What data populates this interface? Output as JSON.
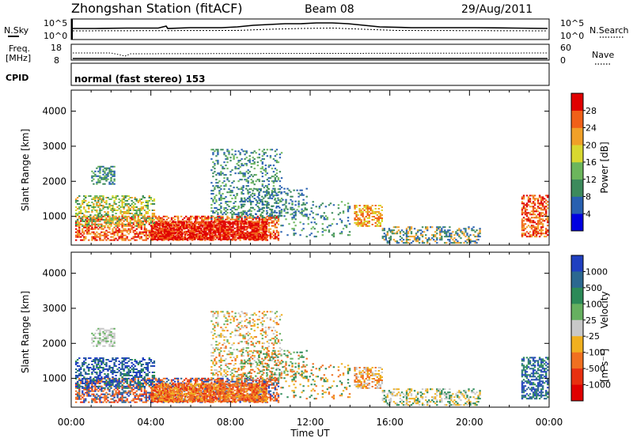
{
  "header": {
    "title": "Zhongshan Station (fitACF)",
    "beam": "Beam 08",
    "date": "29/Aug/2011"
  },
  "panel_labels": {
    "nsky": "N.Sky",
    "nsearch": "N.Search",
    "freq_line1": "Freq.",
    "freq_line2": "[MHz]",
    "nave": "Nave",
    "cpid": "CPID",
    "cpid_text": "normal (fast stereo) 153",
    "nsky_ticks": [
      "10^5",
      "10^0"
    ],
    "nsearch_ticks": [
      "10^5",
      "10^0"
    ],
    "freq_ticks": [
      "18",
      "8"
    ],
    "nave_ticks": [
      "60",
      "0"
    ]
  },
  "chart_data": [
    {
      "type": "heatmap",
      "title": "",
      "quantity": "power",
      "xlabel": "",
      "ylabel": "Slant Range [km]",
      "ylim": [
        180,
        4600
      ],
      "xlim": [
        0,
        24
      ],
      "x_ticks": [
        "00:00",
        "04:00",
        "08:00",
        "12:00",
        "16:00",
        "20:00",
        "00:00"
      ],
      "y_ticks": [
        1000,
        2000,
        3000,
        4000
      ],
      "colorbar_label": "Power [dB]",
      "colorbar_ticks": [
        4,
        8,
        12,
        16,
        20,
        24,
        28
      ],
      "colorbar_colors": [
        "#0000e0",
        "#2860b0",
        "#3c8a5c",
        "#6cb65c",
        "#d8d830",
        "#f0a028",
        "#f06018",
        "#e00000"
      ]
    },
    {
      "type": "heatmap",
      "title": "",
      "quantity": "velocity",
      "xlabel": "Time UT",
      "ylabel": "Slant Range [km]",
      "ylim": [
        180,
        4600
      ],
      "xlim": [
        0,
        24
      ],
      "x_ticks": [
        "00:00",
        "04:00",
        "08:00",
        "12:00",
        "16:00",
        "20:00",
        "00:00"
      ],
      "y_ticks": [
        1000,
        2000,
        3000,
        4000
      ],
      "colorbar_label": "Velocity",
      "colorbar_unit": "[m s⁻¹]",
      "colorbar_ticks": [
        1000,
        500,
        100,
        25,
        -25,
        -100,
        -500,
        -1000
      ],
      "colorbar_colors": [
        "#2040c0",
        "#2c6890",
        "#2c8a58",
        "#66b060",
        "#c8c8c8",
        "#f0b020",
        "#f07020",
        "#e83010",
        "#e00000"
      ]
    }
  ]
}
